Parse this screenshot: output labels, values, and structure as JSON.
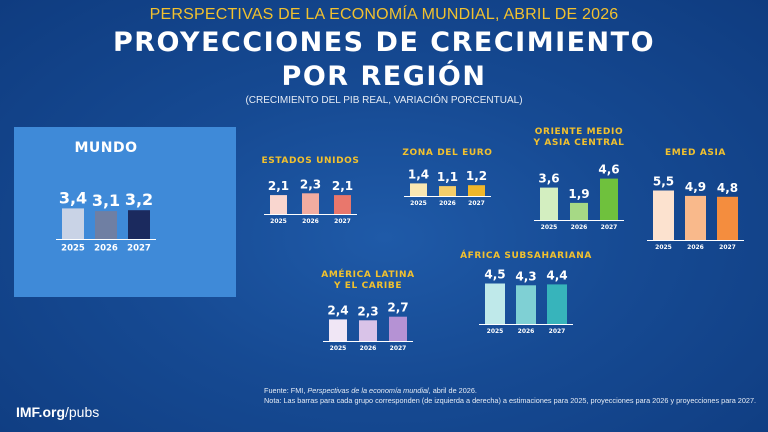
{
  "header": {
    "subtitle": "PERSPECTIVAS DE LA ECONOMÍA MUNDIAL, ABRIL DE 2026",
    "title_line1": "PROYECCIONES DE CRECIMIENTO",
    "title_line2": "POR REGIÓN",
    "units": "(CRECIMIENTO DEL PIB REAL, VARIACIÓN PORCENTUAL)"
  },
  "footer": {
    "logo_main": "IMF.org",
    "logo_path": "/pubs",
    "source_prefix": "Fuente: FMI, ",
    "source_italic": "Perspectivas de la economía mundial",
    "source_suffix": ", abril de 2026.",
    "note": "Nota: Las barras para cada grupo corresponden (de izquierda a derecha) a estimaciones para 2025, proyecciones para 2026 y proyecciones para 2027."
  },
  "chart_data": [
    {
      "type": "bar",
      "title": "MUNDO",
      "categories": [
        "2025",
        "2026",
        "2027"
      ],
      "values": [
        3.4,
        3.1,
        3.2
      ],
      "value_labels": [
        "3,4",
        "3,1",
        "3,2"
      ],
      "colors": [
        "#c9d3e6",
        "#6f7fa3",
        "#1b2a5e"
      ]
    },
    {
      "type": "bar",
      "title": "ESTADOS UNIDOS",
      "categories": [
        "2025",
        "2026",
        "2027"
      ],
      "values": [
        2.1,
        2.3,
        2.1
      ],
      "value_labels": [
        "2,1",
        "2,3",
        "2,1"
      ],
      "colors": [
        "#f9d6cf",
        "#f2aca0",
        "#e9776c"
      ]
    },
    {
      "type": "bar",
      "title": "ZONA DEL EURO",
      "categories": [
        "2025",
        "2026",
        "2027"
      ],
      "values": [
        1.4,
        1.1,
        1.2
      ],
      "value_labels": [
        "1,4",
        "1,1",
        "1,2"
      ],
      "colors": [
        "#f9e7b2",
        "#f4cd6a",
        "#f0b72a"
      ]
    },
    {
      "type": "bar",
      "title": "ORIENTE MEDIO Y ASIA CENTRAL",
      "title_lines": [
        "ORIENTE MEDIO",
        "Y ASIA CENTRAL"
      ],
      "categories": [
        "2025",
        "2026",
        "2027"
      ],
      "values": [
        3.6,
        1.9,
        4.6
      ],
      "value_labels": [
        "3,6",
        "1,9",
        "4,6"
      ],
      "colors": [
        "#d3eec0",
        "#a6d985",
        "#6fc13d"
      ]
    },
    {
      "type": "bar",
      "title": "EMED ASIA",
      "categories": [
        "2025",
        "2026",
        "2027"
      ],
      "values": [
        5.5,
        4.9,
        4.8
      ],
      "value_labels": [
        "5,5",
        "4,9",
        "4,8"
      ],
      "colors": [
        "#fce2cf",
        "#f9b98b",
        "#f48d3e"
      ]
    },
    {
      "type": "bar",
      "title": "ÁFRICA SUBSAHARIANA",
      "categories": [
        "2025",
        "2026",
        "2027"
      ],
      "values": [
        4.5,
        4.3,
        4.4
      ],
      "value_labels": [
        "4,5",
        "4,3",
        "4,4"
      ],
      "colors": [
        "#bfe9ea",
        "#7fd0d4",
        "#37b4bb"
      ]
    },
    {
      "type": "bar",
      "title": "AMÉRICA LATINA Y EL CARIBE",
      "title_lines": [
        "AMÉRICA LATINA",
        "Y EL CARIBE"
      ],
      "categories": [
        "2025",
        "2026",
        "2027"
      ],
      "values": [
        2.4,
        2.3,
        2.7
      ],
      "value_labels": [
        "2,4",
        "2,3",
        "2,7"
      ],
      "colors": [
        "#f0e6f5",
        "#d9c3e8",
        "#b592d4"
      ]
    }
  ]
}
